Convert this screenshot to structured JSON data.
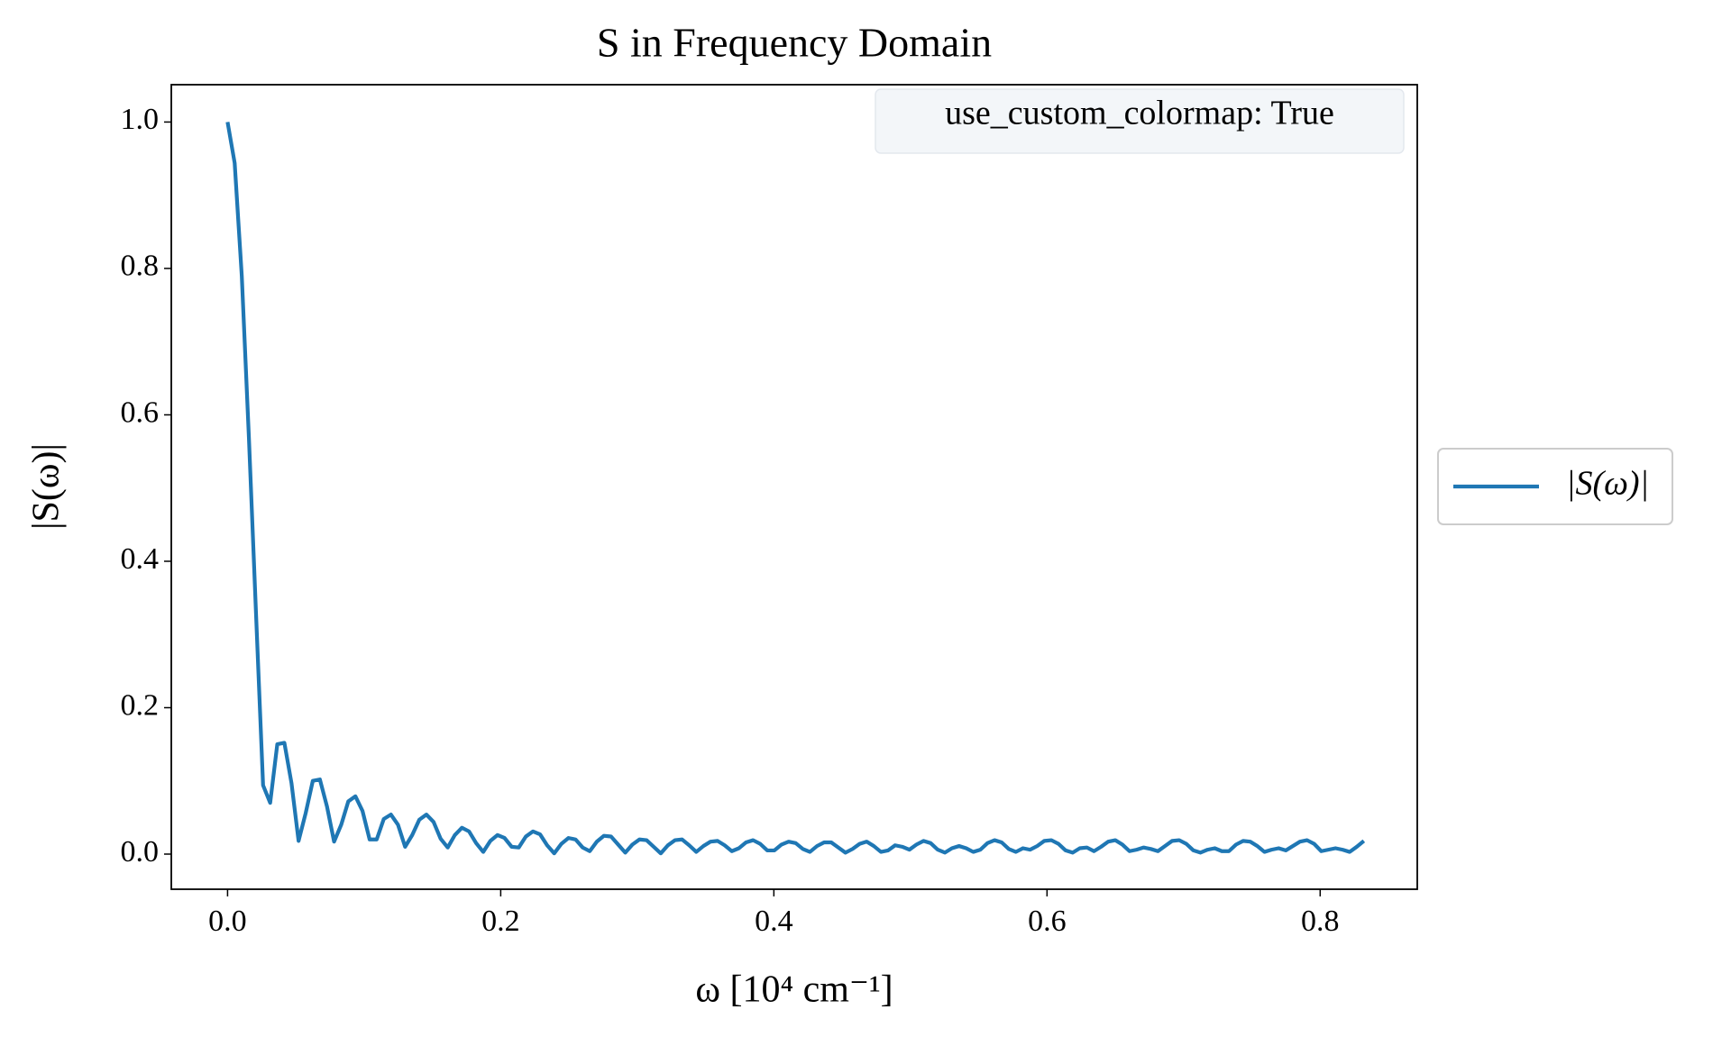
{
  "chart_data": {
    "type": "line",
    "title": "S in Frequency Domain",
    "x_label": "ω [10⁴ cm⁻¹]",
    "y_label": "|S(ω)|",
    "annotation": "use_custom_colormap: True",
    "legend_position": "center right outside",
    "grid": false,
    "xlim": [
      -0.0412,
      0.8711
    ],
    "ylim": [
      -0.048,
      1.051
    ],
    "xticks": [
      {
        "value": 0,
        "label": "0.0"
      },
      0.2,
      0.4,
      0.6,
      0.8
    ],
    "yticks": [
      {
        "value": 0,
        "label": "0.0"
      },
      0.2,
      0.4,
      0.6,
      0.8,
      {
        "value": 1,
        "label": "1.0"
      }
    ],
    "x": [
      0,
      0.0052,
      0.0104,
      0.0156,
      0.0208,
      0.026,
      0.0312,
      0.0364,
      0.0416,
      0.0468,
      0.052,
      0.0572,
      0.0624,
      0.0676,
      0.0728,
      0.078,
      0.0832,
      0.0884,
      0.0936,
      0.0988,
      0.104,
      0.1092,
      0.1144,
      0.1196,
      0.1248,
      0.13,
      0.1352,
      0.1404,
      0.1456,
      0.1508,
      0.156,
      0.1612,
      0.1664,
      0.1716,
      0.1768,
      0.182,
      0.1872,
      0.1924,
      0.1976,
      0.2028,
      0.208,
      0.2132,
      0.2184,
      0.2236,
      0.2288,
      0.234,
      0.2392,
      0.2444,
      0.2496,
      0.2548,
      0.26,
      0.2652,
      0.2704,
      0.2756,
      0.2808,
      0.286,
      0.2912,
      0.2964,
      0.3016,
      0.3068,
      0.312,
      0.3172,
      0.3224,
      0.3276,
      0.3328,
      0.338,
      0.3432,
      0.3484,
      0.3536,
      0.3588,
      0.364,
      0.3692,
      0.3744,
      0.3796,
      0.3848,
      0.39,
      0.3952,
      0.4004,
      0.4056,
      0.4108,
      0.416,
      0.4212,
      0.4264,
      0.4316,
      0.4368,
      0.442,
      0.4472,
      0.4524,
      0.4576,
      0.4628,
      0.468,
      0.4732,
      0.4784,
      0.4836,
      0.4888,
      0.494,
      0.4992,
      0.5044,
      0.5096,
      0.5148,
      0.52,
      0.5252,
      0.5304,
      0.5356,
      0.5408,
      0.546,
      0.5512,
      0.5564,
      0.5616,
      0.5668,
      0.572,
      0.5772,
      0.5824,
      0.5876,
      0.5928,
      0.598,
      0.6032,
      0.6084,
      0.6136,
      0.6188,
      0.624,
      0.6292,
      0.6344,
      0.6396,
      0.6448,
      0.65,
      0.6552,
      0.6604,
      0.6656,
      0.6708,
      0.676,
      0.6812,
      0.6864,
      0.6916,
      0.6968,
      0.702,
      0.7072,
      0.7124,
      0.7176,
      0.7228,
      0.728,
      0.7332,
      0.7384,
      0.7436,
      0.7488,
      0.754,
      0.7592,
      0.7644,
      0.7696,
      0.7748,
      0.78,
      0.7852,
      0.7904,
      0.7956,
      0.8008,
      0.806,
      0.8112,
      0.8164,
      0.8216,
      0.8268,
      0.832
    ],
    "series": [
      {
        "name": "|S(ω)|",
        "color": "#1f77b4",
        "values": [
          1.0,
          0.944,
          0.79,
          0.57,
          0.33,
          0.094,
          0.07,
          0.15,
          0.152,
          0.097,
          0.018,
          0.056,
          0.1,
          0.102,
          0.065,
          0.017,
          0.04,
          0.072,
          0.079,
          0.059,
          0.02,
          0.02,
          0.048,
          0.054,
          0.04,
          0.01,
          0.026,
          0.047,
          0.054,
          0.044,
          0.021,
          0.009,
          0.026,
          0.036,
          0.031,
          0.015,
          0.003,
          0.018,
          0.026,
          0.022,
          0.01,
          0.009,
          0.024,
          0.031,
          0.027,
          0.012,
          0.001,
          0.014,
          0.022,
          0.02,
          0.009,
          0.004,
          0.017,
          0.025,
          0.024,
          0.013,
          0.002,
          0.013,
          0.02,
          0.019,
          0.01,
          0.001,
          0.012,
          0.019,
          0.02,
          0.012,
          0.003,
          0.011,
          0.017,
          0.018,
          0.012,
          0.004,
          0.008,
          0.016,
          0.019,
          0.014,
          0.005,
          0.005,
          0.013,
          0.017,
          0.015,
          0.007,
          0.003,
          0.011,
          0.016,
          0.016,
          0.009,
          0.002,
          0.007,
          0.014,
          0.017,
          0.011,
          0.003,
          0.005,
          0.012,
          0.01,
          0.006,
          0.013,
          0.018,
          0.015,
          0.006,
          0.002,
          0.008,
          0.011,
          0.008,
          0.003,
          0.006,
          0.015,
          0.019,
          0.016,
          0.007,
          0.003,
          0.008,
          0.006,
          0.011,
          0.018,
          0.019,
          0.014,
          0.005,
          0.002,
          0.008,
          0.009,
          0.004,
          0.01,
          0.017,
          0.019,
          0.013,
          0.004,
          0.006,
          0.009,
          0.007,
          0.004,
          0.011,
          0.018,
          0.019,
          0.014,
          0.005,
          0.002,
          0.006,
          0.008,
          0.004,
          0.004,
          0.013,
          0.018,
          0.017,
          0.011,
          0.003,
          0.006,
          0.008,
          0.005,
          0.011,
          0.017,
          0.019,
          0.014,
          0.004,
          0.006,
          0.008,
          0.006,
          0.003,
          0.01,
          0.018
        ]
      }
    ]
  }
}
